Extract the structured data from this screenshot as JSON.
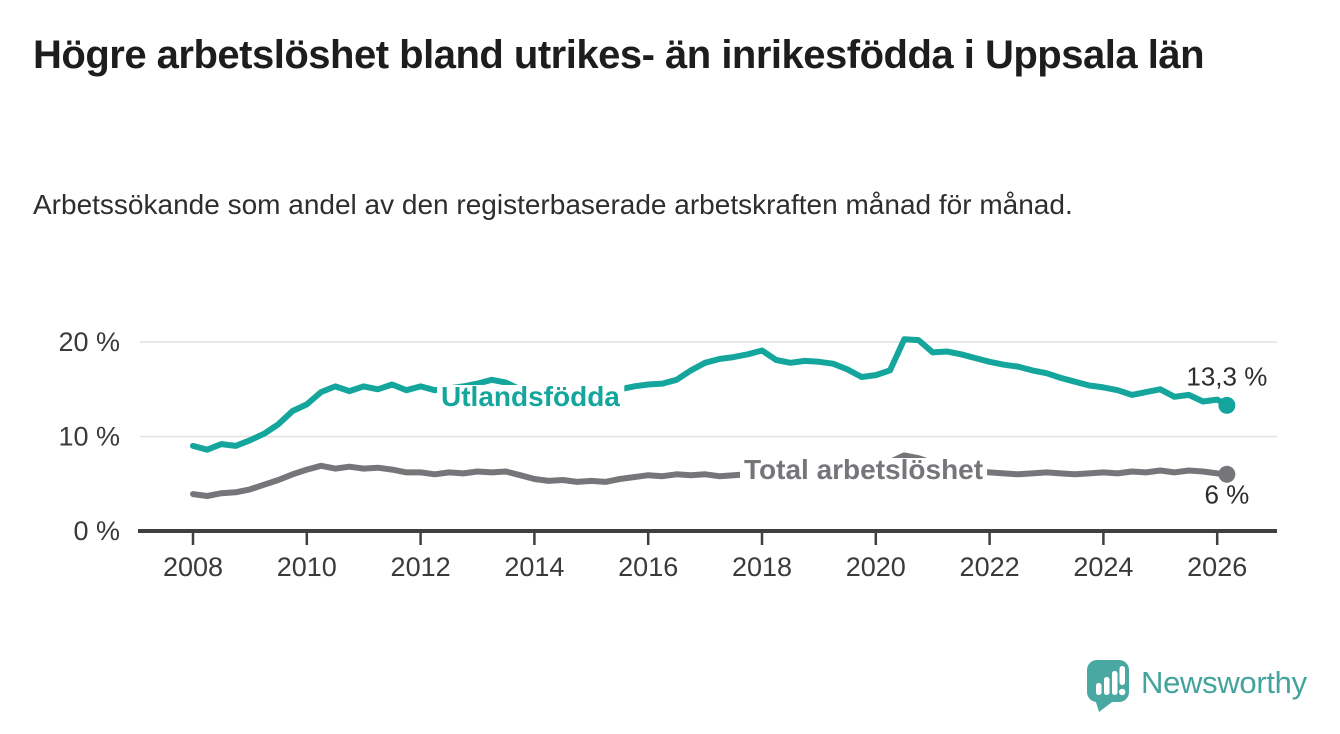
{
  "chart_data": {
    "type": "line",
    "title": "Högre arbetslöshet bland utrikes- än inrikesfödda i Uppsala län",
    "subtitle": "Arbetssökande som andel av den registerbaserade arbetskraften månad för månad.",
    "xlabel": "",
    "ylabel": "",
    "xlim": [
      2007.1,
      2027.2
    ],
    "ylim": [
      0,
      21.5
    ],
    "grid": "horizontal-only",
    "legend": "inline-labels-on-lines",
    "x_ticks": [
      2008,
      2010,
      2012,
      2014,
      2016,
      2018,
      2020,
      2022,
      2024,
      2026
    ],
    "y_ticks": [
      {
        "label": "0 %",
        "value": 0
      },
      {
        "label": "10 %",
        "value": 10
      },
      {
        "label": "20 %",
        "value": 20
      }
    ],
    "series": [
      {
        "name": "Utlandsfödda",
        "color": "#14a69c",
        "end_label": "13,3 %",
        "end_value": 13.3,
        "points": [
          [
            2008,
            9.0
          ],
          [
            2008.25,
            8.6
          ],
          [
            2008.5,
            9.2
          ],
          [
            2008.75,
            9.0
          ],
          [
            2009,
            9.6
          ],
          [
            2009.25,
            10.3
          ],
          [
            2009.5,
            11.3
          ],
          [
            2009.75,
            12.7
          ],
          [
            2010,
            13.4
          ],
          [
            2010.25,
            14.7
          ],
          [
            2010.5,
            15.3
          ],
          [
            2010.75,
            14.8
          ],
          [
            2011,
            15.3
          ],
          [
            2011.25,
            15.0
          ],
          [
            2011.5,
            15.5
          ],
          [
            2011.75,
            14.9
          ],
          [
            2012,
            15.3
          ],
          [
            2012.25,
            14.9
          ],
          [
            2012.5,
            15.1
          ],
          [
            2012.75,
            15.3
          ],
          [
            2013,
            15.6
          ],
          [
            2013.25,
            16.0
          ],
          [
            2013.5,
            15.7
          ],
          [
            2013.75,
            15.0
          ],
          [
            2014,
            14.3
          ],
          [
            2014.25,
            13.7
          ],
          [
            2014.5,
            13.4
          ],
          [
            2014.75,
            13.7
          ],
          [
            2015,
            14.1
          ],
          [
            2015.25,
            14.5
          ],
          [
            2015.5,
            15.0
          ],
          [
            2015.75,
            15.3
          ],
          [
            2016,
            15.5
          ],
          [
            2016.25,
            15.6
          ],
          [
            2016.5,
            16.0
          ],
          [
            2016.75,
            17.0
          ],
          [
            2017,
            17.8
          ],
          [
            2017.25,
            18.2
          ],
          [
            2017.5,
            18.4
          ],
          [
            2017.75,
            18.7
          ],
          [
            2018,
            19.1
          ],
          [
            2018.25,
            18.1
          ],
          [
            2018.5,
            17.8
          ],
          [
            2018.75,
            18.0
          ],
          [
            2019,
            17.9
          ],
          [
            2019.25,
            17.7
          ],
          [
            2019.5,
            17.1
          ],
          [
            2019.75,
            16.3
          ],
          [
            2020,
            16.5
          ],
          [
            2020.25,
            17.0
          ],
          [
            2020.5,
            20.3
          ],
          [
            2020.75,
            20.2
          ],
          [
            2021,
            18.9
          ],
          [
            2021.25,
            19.0
          ],
          [
            2021.5,
            18.7
          ],
          [
            2021.75,
            18.3
          ],
          [
            2022,
            17.9
          ],
          [
            2022.25,
            17.6
          ],
          [
            2022.5,
            17.4
          ],
          [
            2022.75,
            17.0
          ],
          [
            2023,
            16.7
          ],
          [
            2023.25,
            16.2
          ],
          [
            2023.5,
            15.8
          ],
          [
            2023.75,
            15.4
          ],
          [
            2024,
            15.2
          ],
          [
            2024.25,
            14.9
          ],
          [
            2024.5,
            14.4
          ],
          [
            2024.75,
            14.7
          ],
          [
            2025,
            15.0
          ],
          [
            2025.25,
            14.2
          ],
          [
            2025.5,
            14.4
          ],
          [
            2025.75,
            13.7
          ],
          [
            2026,
            13.9
          ],
          [
            2026.17,
            13.3
          ]
        ]
      },
      {
        "name": "Total arbetslöshet",
        "color": "#76767a",
        "end_label": "6 %",
        "end_value": 6.0,
        "points": [
          [
            2008,
            3.9
          ],
          [
            2008.25,
            3.7
          ],
          [
            2008.5,
            4.0
          ],
          [
            2008.75,
            4.1
          ],
          [
            2009,
            4.4
          ],
          [
            2009.25,
            4.9
          ],
          [
            2009.5,
            5.4
          ],
          [
            2009.75,
            6.0
          ],
          [
            2010,
            6.5
          ],
          [
            2010.25,
            6.9
          ],
          [
            2010.5,
            6.6
          ],
          [
            2010.75,
            6.8
          ],
          [
            2011,
            6.6
          ],
          [
            2011.25,
            6.7
          ],
          [
            2011.5,
            6.5
          ],
          [
            2011.75,
            6.2
          ],
          [
            2012,
            6.2
          ],
          [
            2012.25,
            6.0
          ],
          [
            2012.5,
            6.2
          ],
          [
            2012.75,
            6.1
          ],
          [
            2013,
            6.3
          ],
          [
            2013.25,
            6.2
          ],
          [
            2013.5,
            6.3
          ],
          [
            2013.75,
            5.9
          ],
          [
            2014,
            5.5
          ],
          [
            2014.25,
            5.3
          ],
          [
            2014.5,
            5.4
          ],
          [
            2014.75,
            5.2
          ],
          [
            2015,
            5.3
          ],
          [
            2015.25,
            5.2
          ],
          [
            2015.5,
            5.5
          ],
          [
            2015.75,
            5.7
          ],
          [
            2016,
            5.9
          ],
          [
            2016.25,
            5.8
          ],
          [
            2016.5,
            6.0
          ],
          [
            2016.75,
            5.9
          ],
          [
            2017,
            6.0
          ],
          [
            2017.25,
            5.8
          ],
          [
            2017.5,
            5.9
          ],
          [
            2017.75,
            6.0
          ],
          [
            2018,
            5.8
          ],
          [
            2018.25,
            5.7
          ],
          [
            2018.5,
            5.8
          ],
          [
            2018.75,
            5.6
          ],
          [
            2019,
            5.7
          ],
          [
            2019.25,
            5.5
          ],
          [
            2019.5,
            5.6
          ],
          [
            2019.75,
            5.7
          ],
          [
            2020,
            5.9
          ],
          [
            2020.25,
            7.3
          ],
          [
            2020.5,
            8.0
          ],
          [
            2020.75,
            7.7
          ],
          [
            2021,
            7.2
          ],
          [
            2021.25,
            6.8
          ],
          [
            2021.5,
            6.5
          ],
          [
            2021.75,
            6.3
          ],
          [
            2022,
            6.2
          ],
          [
            2022.25,
            6.1
          ],
          [
            2022.5,
            6.0
          ],
          [
            2022.75,
            6.1
          ],
          [
            2023,
            6.2
          ],
          [
            2023.25,
            6.1
          ],
          [
            2023.5,
            6.0
          ],
          [
            2023.75,
            6.1
          ],
          [
            2024,
            6.2
          ],
          [
            2024.25,
            6.1
          ],
          [
            2024.5,
            6.3
          ],
          [
            2024.75,
            6.2
          ],
          [
            2025,
            6.4
          ],
          [
            2025.25,
            6.2
          ],
          [
            2025.5,
            6.4
          ],
          [
            2025.75,
            6.3
          ],
          [
            2026,
            6.1
          ],
          [
            2026.17,
            6.0
          ]
        ]
      }
    ]
  },
  "footer": {
    "brand": "Newsworthy",
    "logo_icon": "bar-chart-speech-bubble-icon",
    "brand_color": "#4aa8a2"
  }
}
